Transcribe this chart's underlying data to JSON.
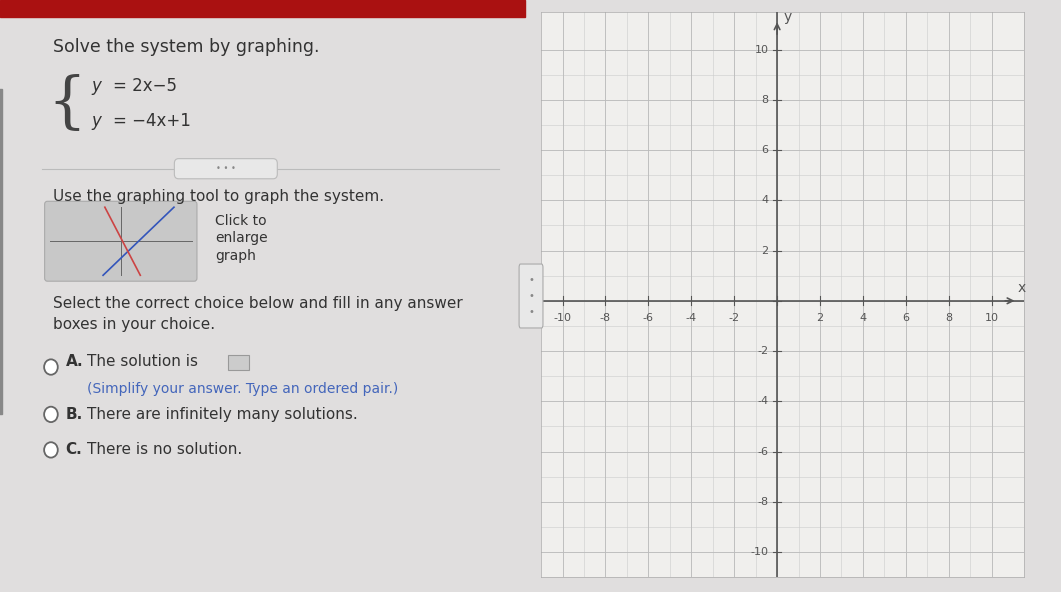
{
  "title": "Solve the system by graphing.",
  "eq1_y": "y",
  "eq1_eq": " = 2x−5",
  "eq2_y": "y",
  "eq2_eq": " = −4x+1",
  "use_graphing_text": "Use the graphing tool to graph the system.",
  "select_text_1": "Select the correct choice below and fill in any answer",
  "select_text_2": "boxes in your choice.",
  "choice_a_text": "The solution is",
  "choice_a_sub": "(Simplify your answer. Type an ordered pair.)",
  "choice_b_text": "There are infinitely many solutions.",
  "choice_c_text": "There is no solution.",
  "graph_xlim": [
    -10.5,
    10.8
  ],
  "graph_ylim": [
    -10.5,
    10.8
  ],
  "grid_minor_color": "#cccccc",
  "grid_major_color": "#bbbbbb",
  "axis_color": "#666666",
  "page_bg": "#e0dede",
  "left_bg": "#f2f2f0",
  "graph_bg": "#f0efed",
  "red_bar_color": "#aa1111",
  "thumb_bg": "#c8c8c8",
  "text_color": "#333333",
  "circle_color": "#666666"
}
